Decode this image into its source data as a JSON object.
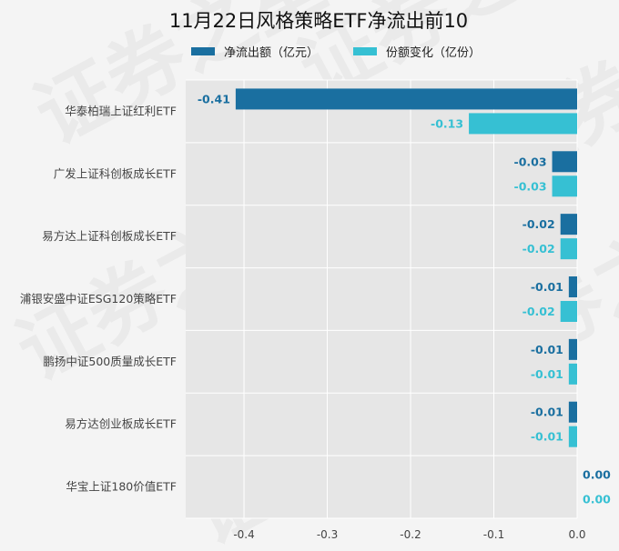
{
  "chart_data": {
    "type": "bar",
    "orientation": "horizontal",
    "title": "11月22日风格策略ETF净流出前10",
    "categories": [
      "华泰柏瑞上证红利ETF",
      "广发上证科创板成长ETF",
      "易方达上证科创板成长ETF",
      "浦银安盛中证ESG120策略ETF",
      "鹏扬中证500质量成长ETF",
      "易方达创业板成长ETF",
      "华宝上证180价值ETF"
    ],
    "series": [
      {
        "name": "净流出额（亿元）",
        "color": "#1a6fa0",
        "values": [
          -0.41,
          -0.03,
          -0.02,
          -0.01,
          -0.01,
          -0.01,
          0.0
        ],
        "labels": [
          "-0.41",
          "-0.03",
          "-0.02",
          "-0.01",
          "-0.01",
          "-0.01",
          "0.00"
        ]
      },
      {
        "name": "份额变化（亿份）",
        "color": "#36c0d3",
        "values": [
          -0.13,
          -0.03,
          -0.02,
          -0.02,
          -0.01,
          -0.01,
          0.0
        ],
        "labels": [
          "-0.13",
          "-0.03",
          "-0.02",
          "-0.02",
          "-0.01",
          "-0.01",
          "0.00"
        ]
      }
    ],
    "xticks": [
      "-0.4",
      "-0.3",
      "-0.2",
      "-0.1",
      "0.0"
    ],
    "xlim": [
      -0.47,
      0.0
    ],
    "grid": true,
    "legend_position": "top",
    "watermark": "证券之星"
  }
}
